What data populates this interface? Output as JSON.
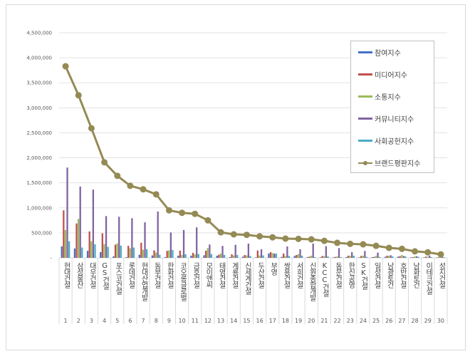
{
  "chart_data": {
    "type": "bar+line",
    "categories": [
      "현대건설",
      "삼성물산",
      "대우건설",
      "GS건설",
      "포스코건설",
      "롯데건설",
      "현대산업개발",
      "동부건설",
      "한화건설",
      "코오롱글로벌",
      "금호건설",
      "모이앤씨",
      "태영건설",
      "계룡건설",
      "신세계건설",
      "두산건설",
      "부영",
      "쌍용건설",
      "서희건설",
      "신원종합개발",
      "KCC건설",
      "동문건설",
      "한신공영",
      "SK건설",
      "일성건설",
      "남광토건",
      "호반건설",
      "남화토건",
      "이테크건설",
      "성지건설"
    ],
    "ranks": [
      "1",
      "2",
      "3",
      "4",
      "5",
      "6",
      "7",
      "8",
      "9",
      "10",
      "11",
      "12",
      "13",
      "14",
      "15",
      "16",
      "17",
      "18",
      "19",
      "20",
      "21",
      "22",
      "23",
      "24",
      "25",
      "26",
      "27",
      "28",
      "29",
      "30"
    ],
    "ylim": [
      0,
      4500000
    ],
    "yticks": [
      "-",
      "500,000",
      "1,000,000",
      "1,500,000",
      "2,000,000",
      "2,500,000",
      "3,000,000",
      "3,500,000",
      "4,000,000",
      "4,500,000"
    ],
    "grid": true,
    "legend_position": "right",
    "series": [
      {
        "name": "참여지수",
        "type": "bar",
        "color": "#4472c4",
        "values": [
          230000,
          187000,
          140000,
          115000,
          29000,
          15000,
          62000,
          48000,
          15000,
          43000,
          43000,
          52000,
          43000,
          14000,
          24000,
          10000,
          86000,
          20000,
          38000,
          15000,
          10000,
          10000,
          15000,
          10000,
          15000,
          20000,
          24000,
          10000,
          8000,
          8000
        ]
      },
      {
        "name": "미디어지수",
        "type": "bar",
        "color": "#c0504d",
        "values": [
          950000,
          687000,
          528000,
          490000,
          264000,
          240000,
          302000,
          148000,
          140000,
          144000,
          101000,
          143000,
          62000,
          71000,
          57000,
          147000,
          114000,
          86000,
          57000,
          24000,
          38000,
          19000,
          43000,
          38000,
          19000,
          43000,
          33000,
          14000,
          24000,
          10000
        ]
      },
      {
        "name": "소통지수",
        "type": "bar",
        "color": "#9bbb59",
        "values": [
          557000,
          778000,
          331000,
          274000,
          288000,
          192000,
          163000,
          105000,
          148000,
          58000,
          72000,
          195000,
          86000,
          48000,
          48000,
          48000,
          95000,
          38000,
          76000,
          43000,
          33000,
          29000,
          43000,
          43000,
          38000,
          43000,
          57000,
          29000,
          24000,
          15000
        ]
      },
      {
        "name": "커뮤니티지수",
        "type": "bar",
        "color": "#8064a2",
        "values": [
          1805000,
          1426000,
          1364000,
          835000,
          821000,
          792000,
          710000,
          926000,
          508000,
          557000,
          609000,
          266000,
          238000,
          261000,
          285000,
          171000,
          86000,
          228000,
          171000,
          285000,
          233000,
          195000,
          114000,
          138000,
          105000,
          52000,
          38000,
          33000,
          43000,
          20000
        ]
      },
      {
        "name": "사회공헌지수",
        "type": "bar",
        "color": "#4bacc6",
        "values": [
          331000,
          206000,
          270000,
          220000,
          245000,
          206000,
          173000,
          62000,
          158000,
          72000,
          77000,
          76000,
          57000,
          57000,
          38000,
          48000,
          86000,
          38000,
          43000,
          15000,
          29000,
          15000,
          43000,
          19000,
          19000,
          29000,
          29000,
          19000,
          15000,
          10000
        ]
      },
      {
        "name": "브랜드평판지수",
        "type": "line",
        "color": "#948a54",
        "values": [
          3830000,
          3250000,
          2590000,
          1910000,
          1640000,
          1440000,
          1370000,
          1270000,
          950000,
          900000,
          880000,
          750000,
          510000,
          470000,
          460000,
          430000,
          410000,
          385000,
          380000,
          370000,
          340000,
          300000,
          280000,
          270000,
          240000,
          200000,
          180000,
          130000,
          110000,
          70000
        ]
      }
    ]
  }
}
